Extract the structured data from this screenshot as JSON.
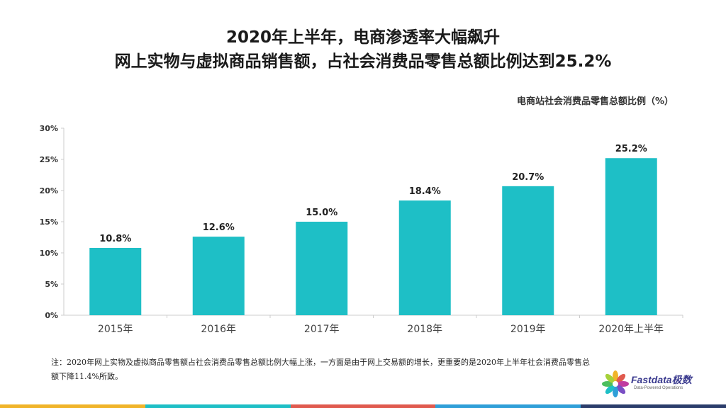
{
  "title_line1": "2020年上半年，电商渗透率大幅飙升",
  "title_line2": "网上实物与虚拟商品销售额，占社会消费品零售总额比例达到25.2%",
  "legend_label": "电商站社会消费品零售总额比例（%）",
  "note": "注：2020年网上实物及虚拟商品零售额占社会消费品零售总额比例大幅上涨，一方面是由于网上交易额的增长，更重要的是2020年上半年社会消费品零售总额下降11.4%所致。",
  "logo": {
    "name": "Fastdata极数",
    "tagline": "Data-Powered Operations"
  },
  "colors": {
    "bar": "#1ebfc6",
    "bottom_bar": [
      "#f0b429",
      "#1ebfc6",
      "#e05a4e",
      "#2f9fd8",
      "#2b3d6b"
    ]
  },
  "chart_data": {
    "type": "bar",
    "categories": [
      "2015年",
      "2016年",
      "2017年",
      "2018年",
      "2019年",
      "2020年上半年"
    ],
    "values": [
      10.8,
      12.6,
      15.0,
      18.4,
      20.7,
      25.2
    ],
    "data_labels": [
      "10.8%",
      "12.6%",
      "15.0%",
      "18.4%",
      "20.7%",
      "25.2%"
    ],
    "yticks": [
      "0%",
      "5%",
      "10%",
      "15%",
      "20%",
      "25%",
      "30%"
    ],
    "ylim": [
      0,
      30
    ],
    "grid": false
  }
}
